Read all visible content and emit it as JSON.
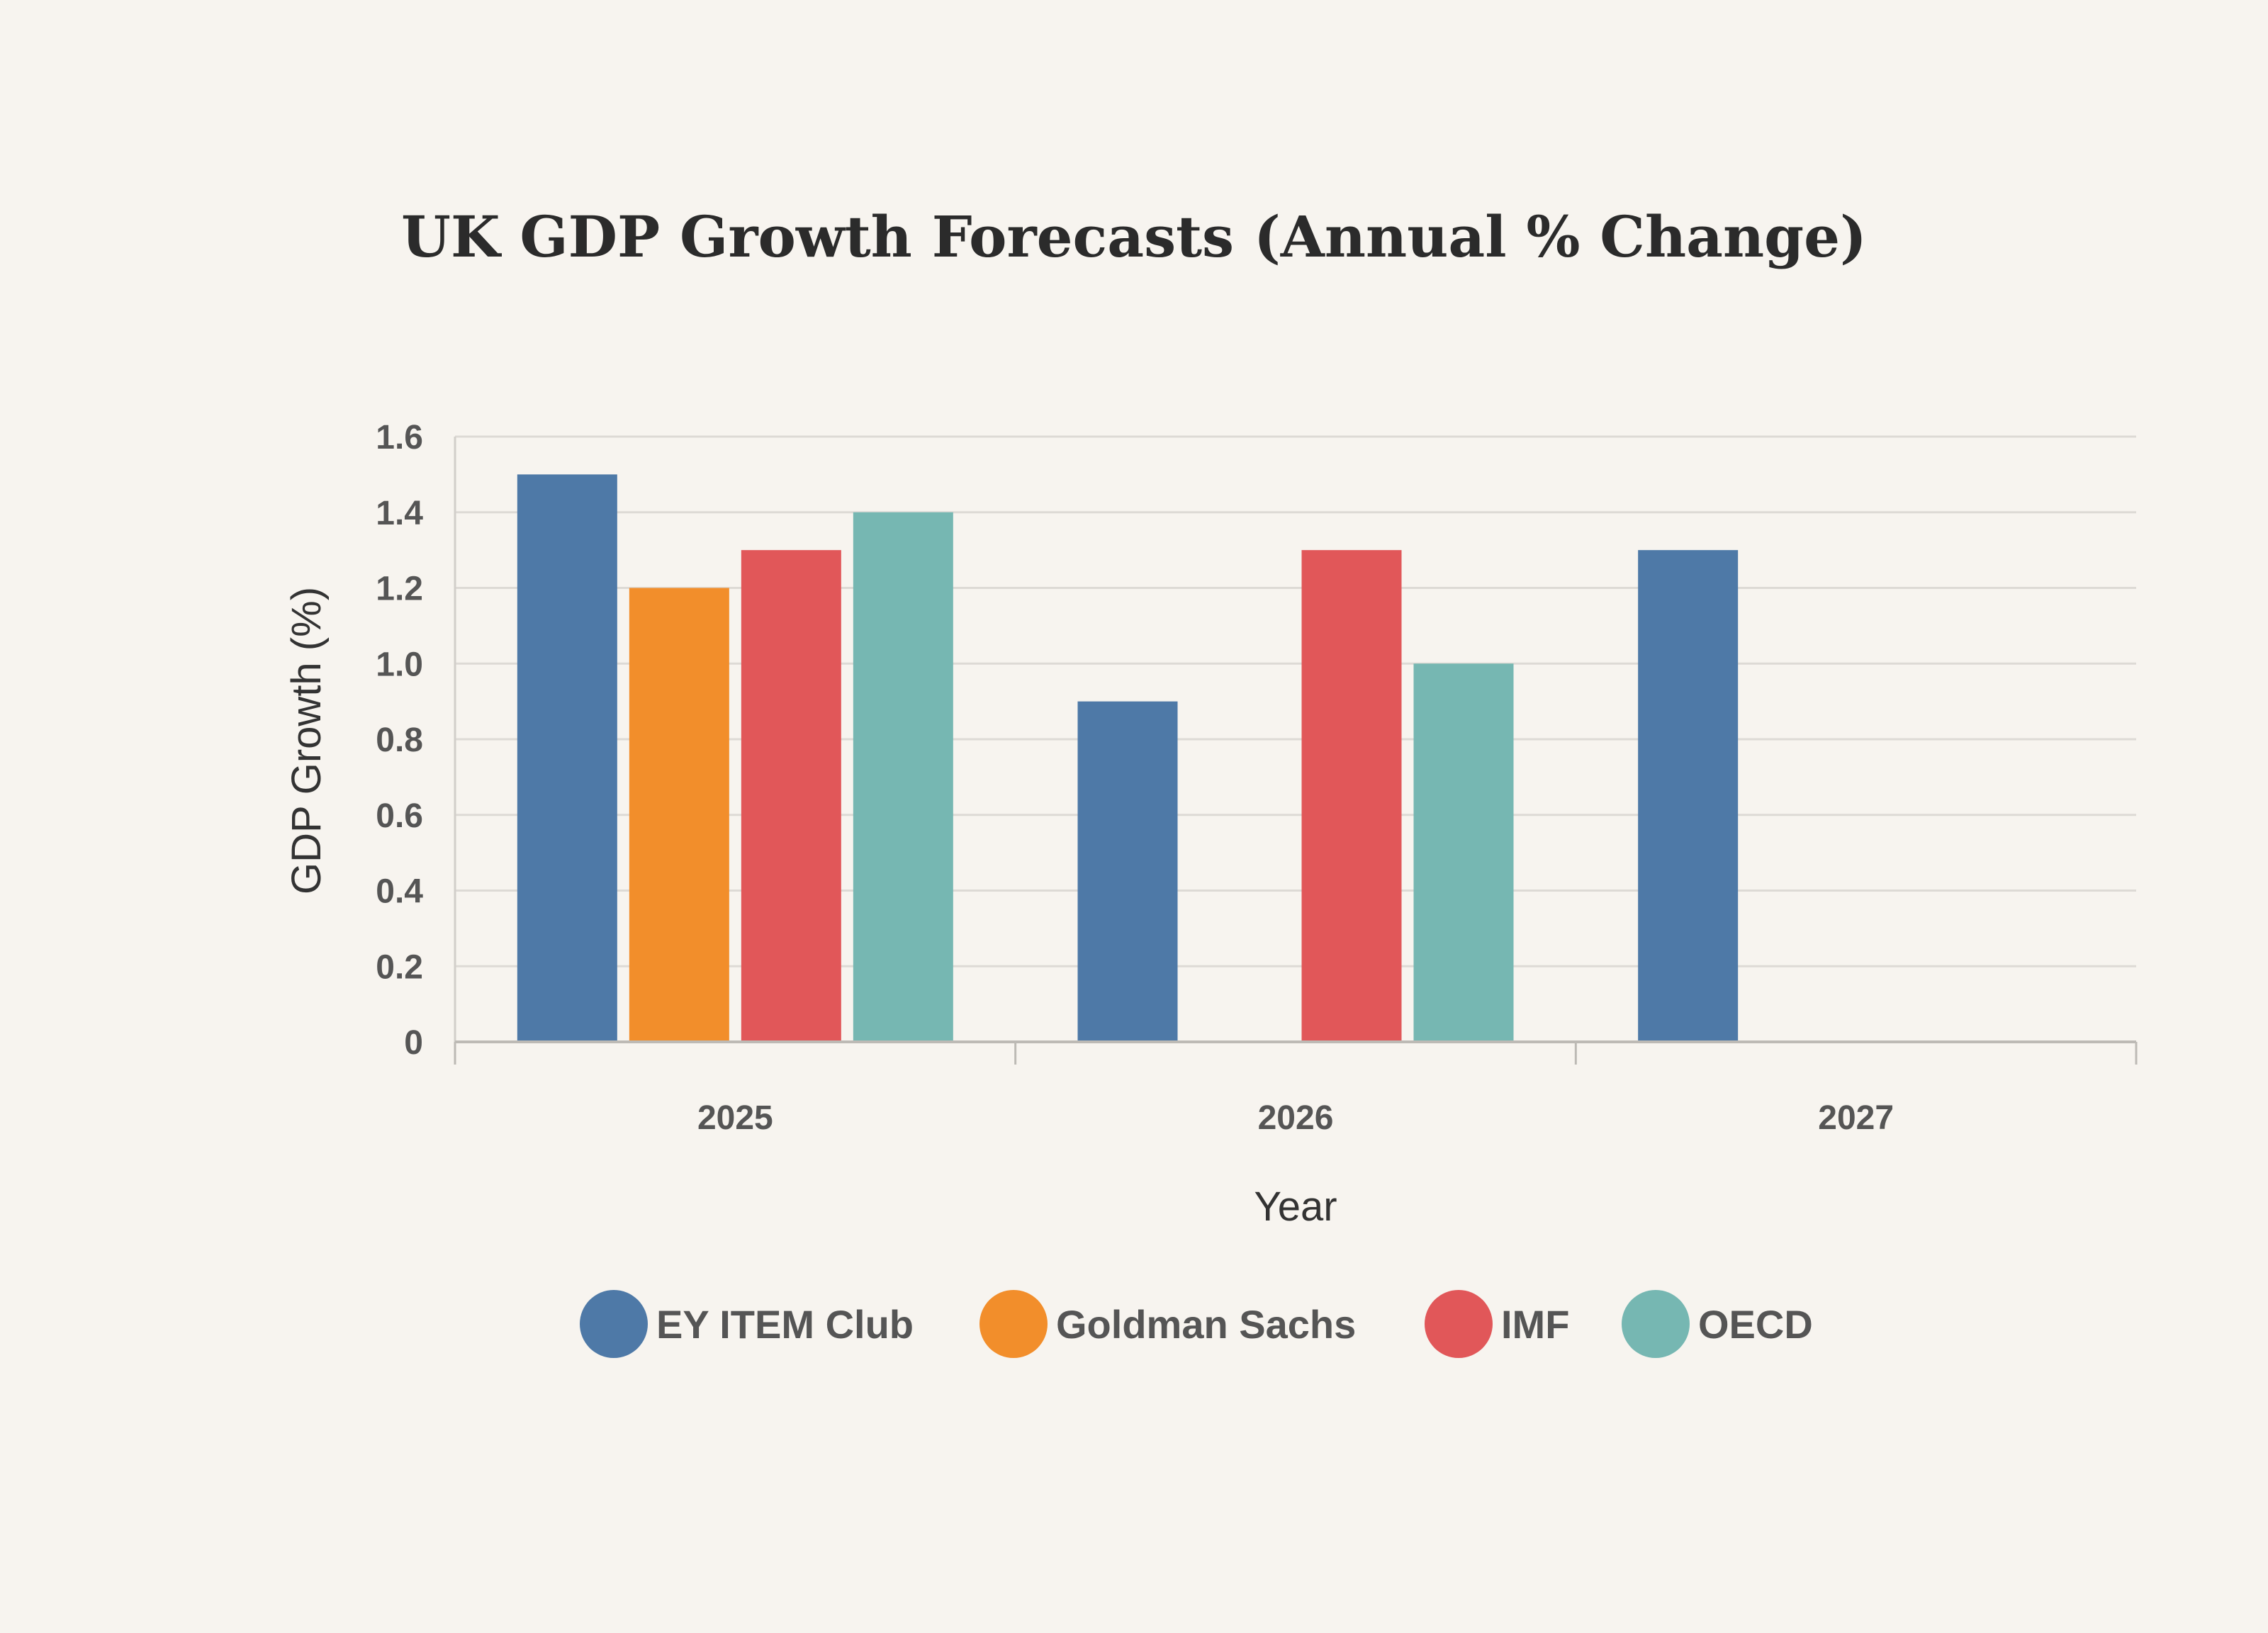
{
  "chart_data": {
    "type": "bar",
    "title": "UK GDP Growth Forecasts (Annual % Change)",
    "xlabel": "Year",
    "ylabel": "GDP Growth (%)",
    "ylim": [
      0,
      1.6
    ],
    "yticks": [
      0,
      0.2,
      0.4,
      0.6,
      0.8,
      1.0,
      1.2,
      1.4,
      1.6
    ],
    "ytick_labels": [
      "0",
      "0.2",
      "0.4",
      "0.6",
      "0.8",
      "1.0",
      "1.2",
      "1.4",
      "1.6"
    ],
    "categories": [
      "2025",
      "2026",
      "2027"
    ],
    "grid": true,
    "legend_position": "bottom",
    "series": [
      {
        "name": "EY ITEM Club",
        "color": "#4e79a7",
        "values": [
          1.5,
          0.9,
          1.3
        ]
      },
      {
        "name": "Goldman Sachs",
        "color": "#f28e2b",
        "values": [
          1.2,
          null,
          null
        ]
      },
      {
        "name": "IMF",
        "color": "#e15759",
        "values": [
          1.3,
          1.3,
          null
        ]
      },
      {
        "name": "OECD",
        "color": "#76b7b2",
        "values": [
          1.4,
          1.0,
          null
        ]
      }
    ]
  }
}
